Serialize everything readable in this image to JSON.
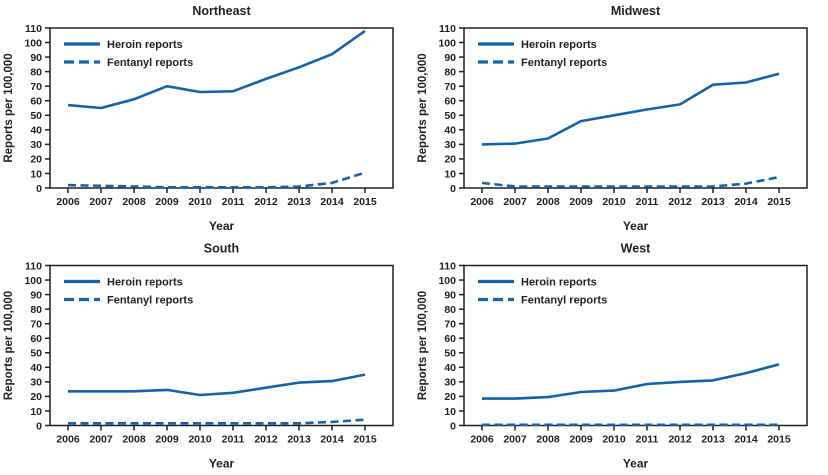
{
  "figure": {
    "background": "#ffffff",
    "line_color": "#1562a9",
    "axis_color": "#231f20",
    "text_color": "#231f20",
    "legend_labels": [
      "Heroin reports",
      "Fentanyl reports"
    ]
  },
  "chart_data": [
    {
      "type": "line",
      "title": "Northeast",
      "xlabel": "Year",
      "ylabel": "Reports per 100,000",
      "ylim": [
        0,
        110
      ],
      "ytick_step": 10,
      "grid": false,
      "legend_position": "top-left-inside",
      "x": [
        2006,
        2007,
        2008,
        2009,
        2010,
        2011,
        2012,
        2013,
        2014,
        2015
      ],
      "series": [
        {
          "name": "Heroin reports",
          "style": "solid",
          "values": [
            57,
            55,
            61,
            70,
            66,
            66.5,
            75,
            83,
            92,
            108
          ]
        },
        {
          "name": "Fentanyl reports",
          "style": "dashed",
          "values": [
            2,
            1.5,
            1,
            0.5,
            0.5,
            0.5,
            0.5,
            1,
            3.5,
            10.5
          ]
        }
      ]
    },
    {
      "type": "line",
      "title": "Midwest",
      "xlabel": "Year",
      "ylabel": "Reports per 100,000",
      "ylim": [
        0,
        110
      ],
      "ytick_step": 10,
      "grid": false,
      "legend_position": "top-left-inside",
      "x": [
        2006,
        2007,
        2008,
        2009,
        2010,
        2011,
        2012,
        2013,
        2014,
        2015
      ],
      "series": [
        {
          "name": "Heroin reports",
          "style": "solid",
          "values": [
            30,
            30.5,
            34,
            46,
            50,
            54,
            57.5,
            71,
            72.5,
            78.5
          ]
        },
        {
          "name": "Fentanyl reports",
          "style": "dashed",
          "values": [
            3.5,
            1,
            1,
            1,
            1,
            1,
            1,
            1,
            3,
            7.5
          ]
        }
      ]
    },
    {
      "type": "line",
      "title": "South",
      "xlabel": "Year",
      "ylabel": "Reports per 100,000",
      "ylim": [
        0,
        110
      ],
      "ytick_step": 10,
      "grid": false,
      "legend_position": "top-left-inside",
      "x": [
        2006,
        2007,
        2008,
        2009,
        2010,
        2011,
        2012,
        2013,
        2014,
        2015
      ],
      "series": [
        {
          "name": "Heroin reports",
          "style": "solid",
          "values": [
            23.5,
            23.5,
            23.5,
            24.5,
            21,
            22.5,
            26,
            29.5,
            30.5,
            35
          ]
        },
        {
          "name": "Fentanyl reports",
          "style": "dashed",
          "values": [
            1.5,
            1.5,
            1.5,
            1.5,
            1.5,
            1.5,
            1.5,
            1.5,
            2.5,
            4
          ]
        }
      ]
    },
    {
      "type": "line",
      "title": "West",
      "xlabel": "Year",
      "ylabel": "Reports per 100,000",
      "ylim": [
        0,
        110
      ],
      "ytick_step": 10,
      "grid": false,
      "legend_position": "top-left-inside",
      "x": [
        2006,
        2007,
        2008,
        2009,
        2010,
        2011,
        2012,
        2013,
        2014,
        2015
      ],
      "series": [
        {
          "name": "Heroin reports",
          "style": "solid",
          "values": [
            18.5,
            18.5,
            19.5,
            23,
            24,
            28.5,
            30,
            31,
            36,
            42
          ]
        },
        {
          "name": "Fentanyl reports",
          "style": "dashed",
          "values": [
            0.5,
            0.5,
            0.5,
            0.5,
            0.5,
            0.5,
            0.5,
            0.5,
            0.5,
            0.5
          ]
        }
      ]
    }
  ]
}
